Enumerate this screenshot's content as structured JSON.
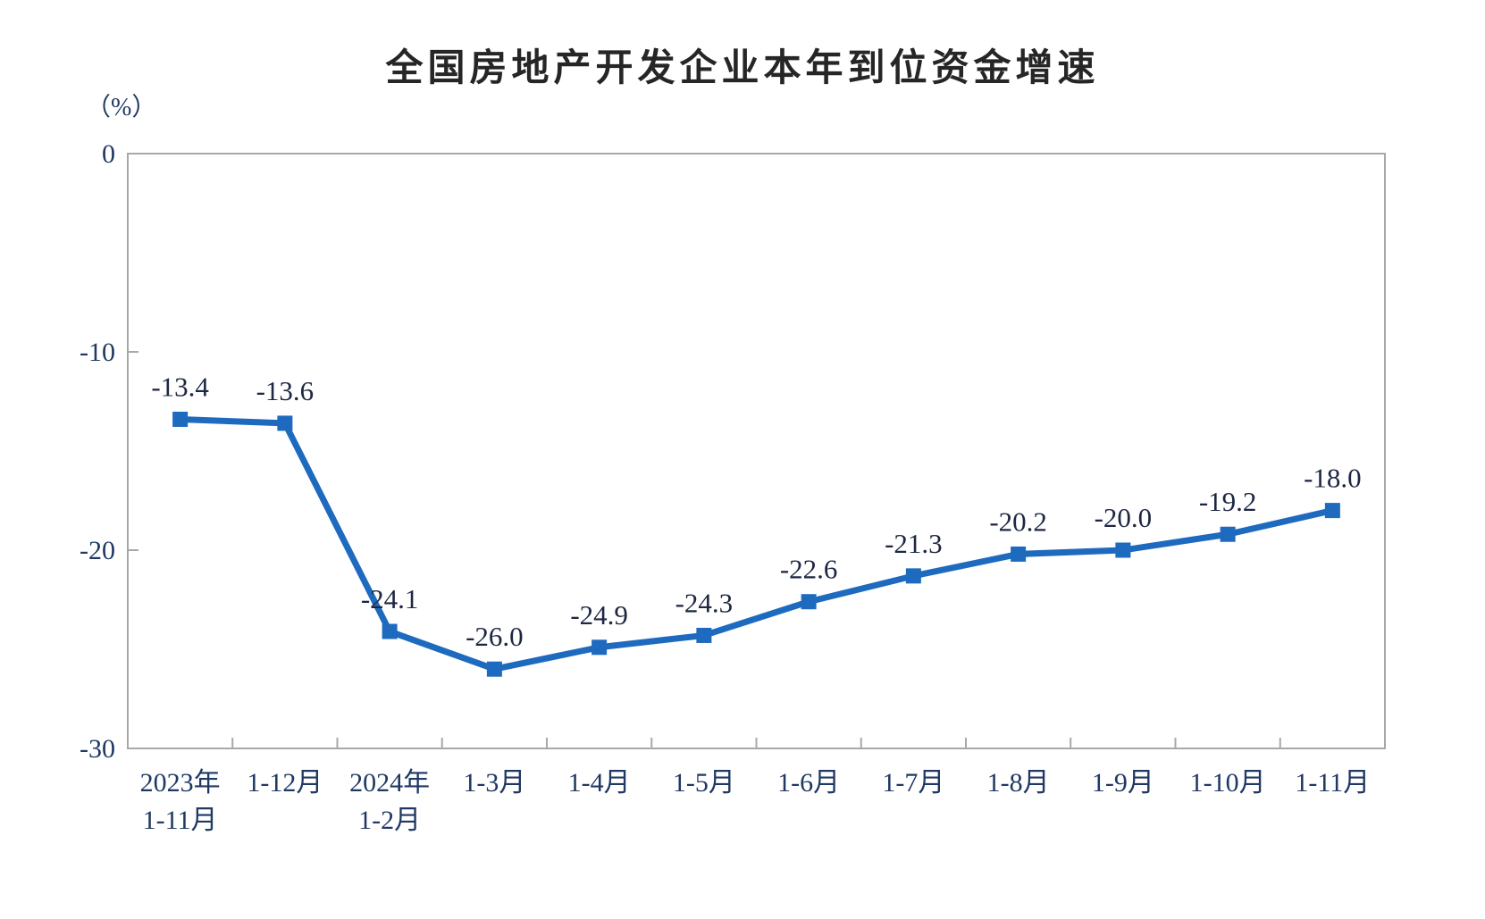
{
  "chart_data": {
    "type": "line",
    "title": "全国房地产开发企业本年到位资金增速",
    "unit_label": "（%）",
    "categories": [
      [
        "2023年",
        "1-11月"
      ],
      [
        "1-12月"
      ],
      [
        "2024年",
        "1-2月"
      ],
      [
        "1-3月"
      ],
      [
        "1-4月"
      ],
      [
        "1-5月"
      ],
      [
        "1-6月"
      ],
      [
        "1-7月"
      ],
      [
        "1-8月"
      ],
      [
        "1-9月"
      ],
      [
        "1-10月"
      ],
      [
        "1-11月"
      ]
    ],
    "values": [
      -13.4,
      -13.6,
      -24.1,
      -26.0,
      -24.9,
      -24.3,
      -22.6,
      -21.3,
      -20.2,
      -20.0,
      -19.2,
      -18.0
    ],
    "data_labels": [
      "-13.4",
      "-13.6",
      "-24.1",
      "-26.0",
      "-24.9",
      "-24.3",
      "-22.6",
      "-21.3",
      "-20.2",
      "-20.0",
      "-19.2",
      "-18.0"
    ],
    "y_ticks": [
      0,
      -10,
      -20,
      -30
    ],
    "ylim": [
      -30,
      0
    ],
    "xlabel": "",
    "ylabel": "（%）",
    "grid": false,
    "legend": "none",
    "marker": "square",
    "colors": {
      "line": "#1e6abe",
      "axis": "#a8a8a8",
      "axis_text": "#1f3864",
      "data_label_text": "#1d2742",
      "title_text": "#262626"
    }
  }
}
